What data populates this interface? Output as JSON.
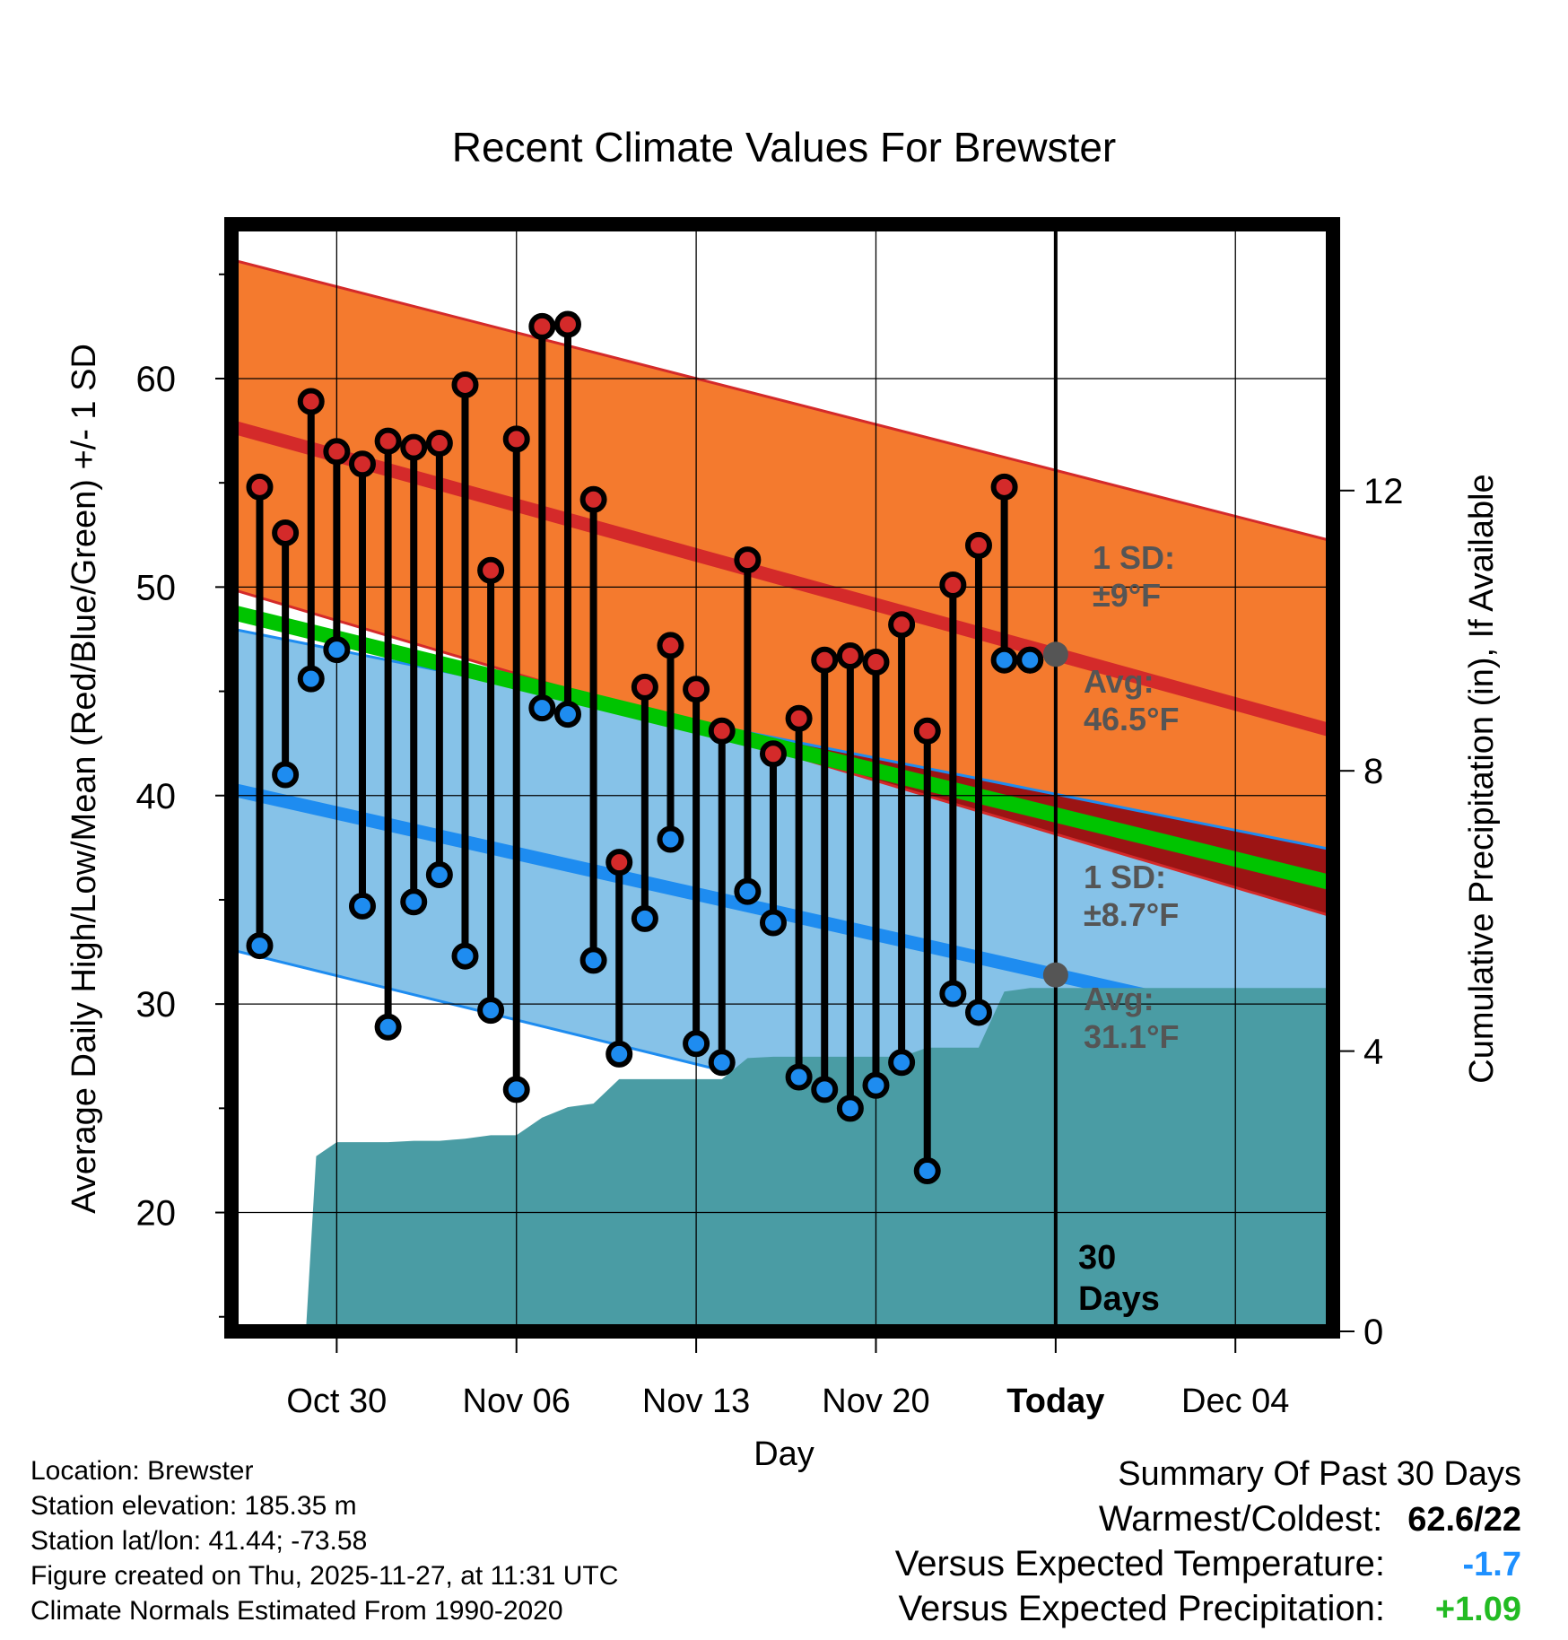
{
  "chart_data": {
    "type": "line",
    "title": "Recent Climate Values For Brewster",
    "xlabel": "Day",
    "ylabel_left": "Average Daily High/Low/Mean (Red/Blue/Green) +/- 1 SD",
    "ylabel_right": "Cumulative Precipitation (in), If Available",
    "xlim_days": [
      -33.1,
      9.8
    ],
    "ylim_left": [
      14.3,
      67.4
    ],
    "ylim_right": [
      0,
      15.8
    ],
    "x_ticks": [
      {
        "day": -29,
        "label": "Oct 30"
      },
      {
        "day": -22,
        "label": "Nov 06"
      },
      {
        "day": -15,
        "label": "Nov 13"
      },
      {
        "day": -8,
        "label": "Nov 20"
      },
      {
        "day": -1,
        "label": "Today"
      },
      {
        "day": 6,
        "label": "Dec 04"
      }
    ],
    "y_ticks_left": [
      20,
      30,
      40,
      50,
      60
    ],
    "y_ticks_right": [
      0,
      4,
      8,
      12
    ],
    "colors": {
      "high_band": "#f47a2e",
      "high_line": "#d42a2a",
      "low_band": "#86c2e8",
      "low_line": "#1e8cf0",
      "mean_line": "#00c400",
      "overlap_band": "#9c1414",
      "precip_fill": "#4a9ca4",
      "high_marker": "#d42a2a",
      "low_marker": "#1e8cf0",
      "annotation_gray": "#555555",
      "versus_temp": "#1e90ff",
      "versus_precip": "#22bb22"
    },
    "normals": {
      "high_mean": [
        57.7,
        43.1
      ],
      "high_sd_upper": [
        65.7,
        52.2
      ],
      "high_sd_lower": [
        49.9,
        34.2
      ],
      "low_mean": [
        40.3,
        28.4
      ],
      "low_sd_upper": [
        48.0,
        37.4
      ],
      "low_sd_lower": [
        32.6,
        19.6
      ],
      "mean_line": [
        48.8,
        35.8
      ]
    },
    "days": [
      -32,
      -31,
      -30,
      -29,
      -28,
      -27,
      -26,
      -25,
      -24,
      -23,
      -22,
      -21,
      -20,
      -19,
      -18,
      -17,
      -16,
      -15,
      -14,
      -13,
      -12,
      -11,
      -10,
      -9,
      -8,
      -7,
      -6,
      -5,
      -4,
      -3,
      -2
    ],
    "highs": [
      54.8,
      52.6,
      58.9,
      56.5,
      55.9,
      57.0,
      56.7,
      56.9,
      59.7,
      50.8,
      57.1,
      62.5,
      62.6,
      54.2,
      36.8,
      45.2,
      47.2,
      45.1,
      43.1,
      51.3,
      42.0,
      43.7,
      46.5,
      46.7,
      46.4,
      48.2,
      43.1,
      50.1,
      52.0,
      54.8,
      46.5
    ],
    "lows": [
      32.8,
      41.0,
      45.6,
      47.0,
      34.7,
      28.9,
      34.9,
      36.2,
      32.3,
      29.7,
      25.9,
      44.2,
      43.9,
      32.1,
      27.6,
      34.1,
      37.9,
      28.1,
      27.2,
      35.4,
      33.9,
      26.5,
      25.9,
      25.0,
      26.1,
      27.2,
      22.0,
      30.5,
      29.6,
      46.5,
      46.5
    ],
    "precip": {
      "days": [
        -33.1,
        -30.2,
        -29.8,
        -29.0,
        -27.0,
        -26.0,
        -25.0,
        -24.0,
        -23.0,
        -22.0,
        -21.0,
        -20.0,
        -19.0,
        -18.0,
        -17.0,
        -16.0,
        -15.0,
        -14.0,
        -13.0,
        -12.0,
        -11.0,
        -10.0,
        -9.0,
        -8.0,
        -7.0,
        -6.0,
        -5.0,
        -4.0,
        -3.0,
        -2.0,
        -1.0,
        9.8
      ],
      "values": [
        0,
        0,
        2.5,
        2.7,
        2.7,
        2.72,
        2.72,
        2.75,
        2.8,
        2.8,
        3.05,
        3.2,
        3.25,
        3.6,
        3.6,
        3.6,
        3.6,
        3.6,
        3.9,
        3.92,
        3.92,
        3.92,
        3.92,
        3.92,
        3.92,
        4.05,
        4.05,
        4.05,
        4.85,
        4.9,
        4.9,
        4.9
      ]
    },
    "today_line_label": "30\nDays",
    "annotations": {
      "high_sd": "1 SD:",
      "high_sd_value": "±9°F",
      "high_avg": "Avg:",
      "high_avg_value": "46.5°F",
      "low_sd": "1 SD:",
      "low_sd_value": "±8.7°F",
      "low_avg": "Avg:",
      "low_avg_value": "31.1°F",
      "days_number": "30",
      "days_word": "Days"
    }
  },
  "footer": {
    "location": "Location: Brewster",
    "elevation": "Station elevation: 185.35 m",
    "latlon": "Station lat/lon: 41.44; -73.58",
    "created": "Figure created on Thu, 2025-11-27, at 11:31 UTC",
    "normals": "Climate Normals Estimated From 1990-2020"
  },
  "summary": {
    "title": "Summary Of Past 30 Days",
    "warmest_coldest_label": "Warmest/Coldest:",
    "warmest_coldest_value": "62.6/22",
    "versus_temp_label": "Versus Expected Temperature:",
    "versus_temp_value": "-1.7",
    "versus_precip_label": "Versus Expected Precipitation:",
    "versus_precip_value": "+1.09"
  }
}
